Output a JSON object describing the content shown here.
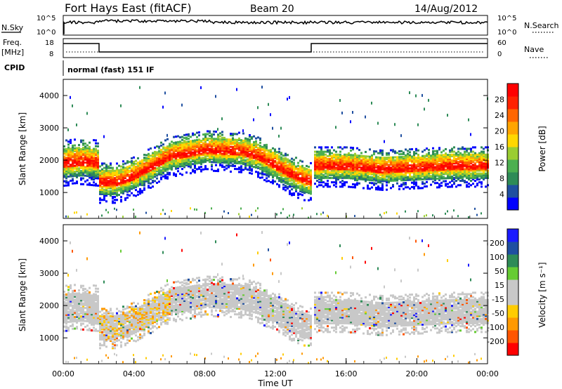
{
  "header": {
    "station": "Fort Hays East (fitACF)",
    "beam": "Beam 20",
    "date": "14/Aug/2012"
  },
  "noise_panel": {
    "left_label": "N.Sky",
    "right_label": "N.Search",
    "left_ticks": [
      "10^5",
      "10^0"
    ],
    "right_ticks": [
      "10^5",
      "10^0"
    ]
  },
  "freq_panel": {
    "left_label_top": "Freq.",
    "left_label_bottom": "[MHz]",
    "left_ticks": [
      "18",
      "8"
    ],
    "right_label": "Nave",
    "right_ticks": [
      "60",
      "0"
    ]
  },
  "cpid_panel": {
    "label": "CPID",
    "mode": "normal (fast) 151 IF"
  },
  "colors": {
    "power": [
      "#0000ff",
      "#1f4fa0",
      "#2e8b57",
      "#4caf50",
      "#9acd32",
      "#ffd700",
      "#ffa500",
      "#ff6600",
      "#ff2200",
      "#ff0000"
    ],
    "velocity": [
      "#1a1aff",
      "#1f4fa0",
      "#2e8b57",
      "#66cc33",
      "#c8c8c8",
      "#c8c8c8",
      "#ffcc00",
      "#ff9900",
      "#ff5500",
      "#ff0000"
    ]
  },
  "chart_data": [
    {
      "type": "heatmap",
      "name": "power",
      "ylabel": "Slant Range [km]",
      "yticks": [
        "1000",
        "2000",
        "3000",
        "4000"
      ],
      "ylim": [
        200,
        4500
      ],
      "xlim": [
        0,
        24
      ],
      "colorbar_label": "Power [dB]",
      "colorbar_ticks": [
        "4",
        "8",
        "12",
        "16",
        "20",
        "24",
        "28"
      ],
      "colorbar_range": [
        0,
        32
      ],
      "echo_band_center_km": [
        [
          0,
          1900
        ],
        [
          1,
          1950
        ],
        [
          1.9,
          1900
        ],
        [
          2,
          1300
        ],
        [
          3,
          1300
        ],
        [
          4,
          1500
        ],
        [
          6,
          2100
        ],
        [
          8,
          2300
        ],
        [
          10,
          2250
        ],
        [
          11,
          2100
        ],
        [
          12,
          1800
        ],
        [
          13,
          1500
        ],
        [
          14,
          1300
        ],
        [
          14.1,
          1800
        ],
        [
          16,
          1800
        ],
        [
          18,
          1700
        ],
        [
          20,
          1750
        ],
        [
          22,
          1800
        ],
        [
          24,
          1800
        ]
      ]
    },
    {
      "type": "heatmap",
      "name": "velocity",
      "ylabel": "Slant Range [km]",
      "yticks": [
        "1000",
        "2000",
        "3000",
        "4000"
      ],
      "ylim": [
        200,
        4500
      ],
      "xlim": [
        0,
        24
      ],
      "xticks": [
        "00:00",
        "04:00",
        "08:00",
        "12:00",
        "16:00",
        "20:00",
        "00:00"
      ],
      "xlabel": "Time UT",
      "colorbar_label": "Velocity [m s⁻¹]",
      "colorbar_ticks": [
        "200",
        "100",
        "50",
        "15",
        "-15",
        "-50",
        "-100",
        "-200"
      ]
    }
  ]
}
